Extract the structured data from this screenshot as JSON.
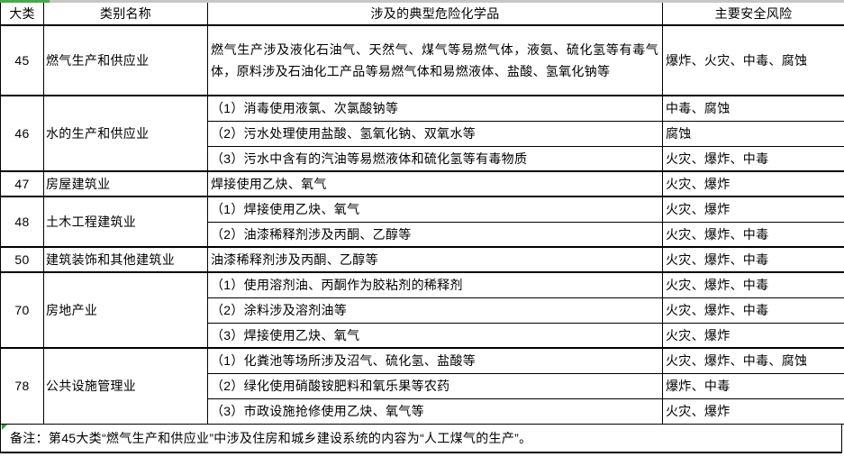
{
  "table": {
    "headers": [
      "大类",
      "类别名称",
      "涉及的典型危险化学品",
      "主要安全风险"
    ],
    "groups": [
      {
        "code": "45",
        "name": "燃气生产和供应业",
        "rows": [
          {
            "chemicals": "燃气生产涉及液化石油气、天然气、煤气等易燃气体，液氨、硫化氢等有毒气体，原料涉及石油化工产品等易燃气体和易燃液体、盐酸、氢氧化钠等",
            "risks": "爆炸、火灾、中毒、腐蚀",
            "tall": true
          }
        ]
      },
      {
        "code": "46",
        "name": "水的生产和供应业",
        "rows": [
          {
            "chemicals": "（1）消毒使用液氯、次氯酸钠等",
            "risks": "中毒、腐蚀"
          },
          {
            "chemicals": "（2）污水处理使用盐酸、氢氧化钠、双氧水等",
            "risks": "腐蚀"
          },
          {
            "chemicals": "（3）污水中含有的汽油等易燃液体和硫化氢等有毒物质",
            "risks": "火灾、爆炸、中毒"
          }
        ]
      },
      {
        "code": "47",
        "name": "房屋建筑业",
        "rows": [
          {
            "chemicals": "焊接使用乙炔、氧气",
            "risks": "火灾、爆炸"
          }
        ]
      },
      {
        "code": "48",
        "name": "土木工程建筑业",
        "rows": [
          {
            "chemicals": "（1）焊接使用乙炔、氧气",
            "risks": "火灾、爆炸"
          },
          {
            "chemicals": "（2）油漆稀释剂涉及丙酮、乙醇等",
            "risks": "火灾、爆炸、中毒"
          }
        ]
      },
      {
        "code": "50",
        "name": "建筑装饰和其他建筑业",
        "rows": [
          {
            "chemicals": "油漆稀释剂涉及丙酮、乙醇等",
            "risks": "火灾、爆炸、中毒"
          }
        ]
      },
      {
        "code": "70",
        "name": "房地产业",
        "rows": [
          {
            "chemicals": "（1）使用溶剂油、丙酮作为胶粘剂的稀释剂",
            "risks": "火灾、爆炸、中毒"
          },
          {
            "chemicals": "（2）涂料涉及溶剂油等",
            "risks": "火灾、爆炸、中毒"
          },
          {
            "chemicals": "（3）焊接使用乙炔、氧气",
            "risks": "火灾、爆炸"
          }
        ]
      },
      {
        "code": "78",
        "name": "公共设施管理业",
        "rows": [
          {
            "chemicals": "（1）化粪池等场所涉及沼气、硫化氢、盐酸等",
            "risks": "火灾、爆炸、中毒、腐蚀"
          },
          {
            "chemicals": "（2）绿化使用硝酸铵肥料和氧乐果等农药",
            "risks": "爆炸、中毒"
          },
          {
            "chemicals": "（3）市政设施抢修使用乙炔、氧气等",
            "risks": "火灾、爆炸"
          }
        ]
      }
    ],
    "note": "备注：第45大类“燃气生产和供应业”中涉及住房和城乡建设系统的内容为“人工煤气的生产”。"
  },
  "colors": {
    "selection_green": "#3fae49",
    "top_strip_gray": "#c6c6c6",
    "border_black": "#000000",
    "background": "#ffffff"
  }
}
